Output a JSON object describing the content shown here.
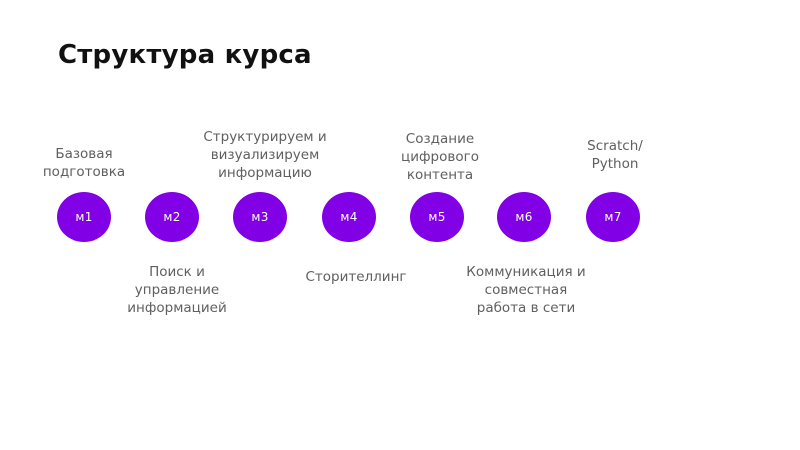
{
  "title": "Структура курса",
  "modules": [
    {
      "id": "m1",
      "label": "м1",
      "description": "Базовая\nподготовка"
    },
    {
      "id": "m2",
      "label": "м2",
      "description": "Поиск и\nуправление\nинформацией"
    },
    {
      "id": "m3",
      "label": "м3",
      "description": "Структурируем и\nвизуализируем\nинформацию"
    },
    {
      "id": "m4",
      "label": "м4",
      "description": "Сторителлинг"
    },
    {
      "id": "m5",
      "label": "м5",
      "description": "Создание\nцифрового\nконтента"
    },
    {
      "id": "m6",
      "label": "м6",
      "description": "Коммуникация и\nсовместная\nработа в сети"
    },
    {
      "id": "m7",
      "label": "м7",
      "description": "Scratch/\nPython"
    }
  ],
  "colors": {
    "module_fill": "#8200e6",
    "module_text": "#ffffff",
    "title": "#111111",
    "label_text": "#5f5f5f"
  }
}
